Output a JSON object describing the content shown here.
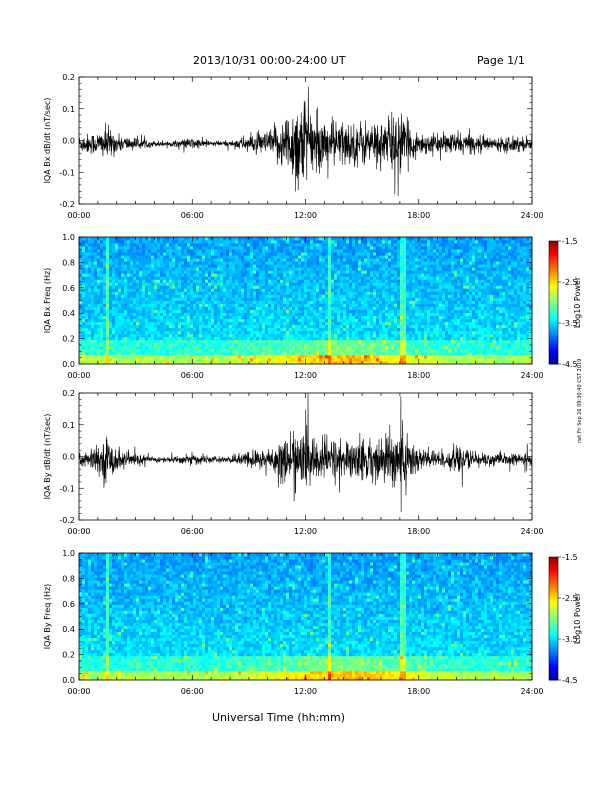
{
  "header": {
    "date_range": "2013/10/31  00:00-24:00 UT",
    "page": "Page 1/1"
  },
  "footer": {
    "xlabel": "Universal Time (hh:mm)",
    "stamp": "rwt Fri Sep 26 09:30:40 CST 2019"
  },
  "colors": {
    "trace": "#000000",
    "spectrogram_low": "#000080",
    "spectrogram_high": "#ff0000"
  },
  "chart_data": [
    {
      "type": "line",
      "title": "",
      "ylabel": "IQA Bx dB/dt (nT/sec)",
      "xlabel": "",
      "x_ticks": [
        "00:00",
        "06:00",
        "12:00",
        "18:00",
        "24:00"
      ],
      "xlim": [
        0,
        24
      ],
      "ylim": [
        -0.2,
        0.2
      ],
      "y_ticks": [
        "0.2",
        "0.1",
        "0.0",
        "-0.1",
        "-0.2"
      ],
      "series": [
        {
          "x": [
            0,
            1,
            1.5,
            2,
            3,
            4,
            5,
            6,
            7,
            8,
            9,
            10,
            10.5,
            11,
            11.5,
            12,
            12.5,
            13,
            13.5,
            14,
            14.5,
            15,
            15.5,
            16,
            16.5,
            17,
            17.5,
            18,
            19,
            20,
            21,
            22,
            23,
            24
          ],
          "amplitude": [
            0.03,
            0.04,
            0.06,
            0.03,
            0.02,
            0.01,
            0.01,
            0.02,
            0.01,
            0.01,
            0.03,
            0.04,
            0.07,
            0.1,
            0.16,
            0.17,
            0.08,
            0.09,
            0.08,
            0.08,
            0.07,
            0.08,
            0.07,
            0.08,
            0.1,
            0.11,
            0.06,
            0.04,
            0.03,
            0.04,
            0.03,
            0.02,
            0.03,
            0.02
          ]
        }
      ]
    },
    {
      "type": "heatmap",
      "title": "",
      "ylabel": "IQA Bx Freq (Hz)",
      "x_ticks": [
        "00:00",
        "06:00",
        "12:00",
        "18:00",
        "24:00"
      ],
      "xlim": [
        0,
        24
      ],
      "ylim": [
        0,
        1.0
      ],
      "y_ticks": [
        "1.0",
        "0.8",
        "0.6",
        "0.4",
        "0.2",
        "0.0"
      ],
      "colorbar": {
        "label": "Log10 Power",
        "range": [
          -4.5,
          -1.5
        ],
        "ticks": [
          "-1.5",
          "-2.5",
          "-3.5",
          "-4.5"
        ]
      },
      "vertical_streaks_hours": [
        1.5,
        13.3,
        17.2
      ]
    },
    {
      "type": "line",
      "title": "",
      "ylabel": "IQA By dB/dt (nT/sec)",
      "xlabel": "",
      "x_ticks": [
        "00:00",
        "06:00",
        "12:00",
        "18:00",
        "24:00"
      ],
      "xlim": [
        0,
        24
      ],
      "ylim": [
        -0.2,
        0.2
      ],
      "y_ticks": [
        "0.2",
        "0.1",
        "0.0",
        "-0.1",
        "-0.2"
      ],
      "series": [
        {
          "x": [
            0,
            1,
            1.5,
            2,
            3,
            4,
            5,
            6,
            7,
            8,
            9,
            10,
            10.5,
            11,
            11.5,
            12,
            12.5,
            13,
            13.5,
            14,
            14.5,
            15,
            15.5,
            16,
            16.5,
            17,
            17.5,
            18,
            19,
            20,
            21,
            22,
            23,
            24
          ],
          "amplitude": [
            0.03,
            0.04,
            0.08,
            0.04,
            0.02,
            0.01,
            0.01,
            0.02,
            0.01,
            0.01,
            0.03,
            0.04,
            0.06,
            0.08,
            0.1,
            0.1,
            0.08,
            0.07,
            0.08,
            0.07,
            0.06,
            0.08,
            0.07,
            0.07,
            0.1,
            0.14,
            0.08,
            0.05,
            0.03,
            0.04,
            0.03,
            0.02,
            0.02,
            0.02
          ]
        }
      ]
    },
    {
      "type": "heatmap",
      "title": "",
      "ylabel": "IQA By Freq (Hz)",
      "x_ticks": [
        "00:00",
        "06:00",
        "12:00",
        "18:00",
        "24:00"
      ],
      "xlim": [
        0,
        24
      ],
      "ylim": [
        0,
        1.0
      ],
      "y_ticks": [
        "1.0",
        "0.8",
        "0.6",
        "0.4",
        "0.2",
        "0.0"
      ],
      "colorbar": {
        "label": "Log10 Power",
        "range": [
          -4.5,
          -1.5
        ],
        "ticks": [
          "-1.5",
          "-2.5",
          "-3.5",
          "-4.5"
        ]
      },
      "vertical_streaks_hours": [
        1.5,
        13.3,
        17.2
      ]
    }
  ]
}
